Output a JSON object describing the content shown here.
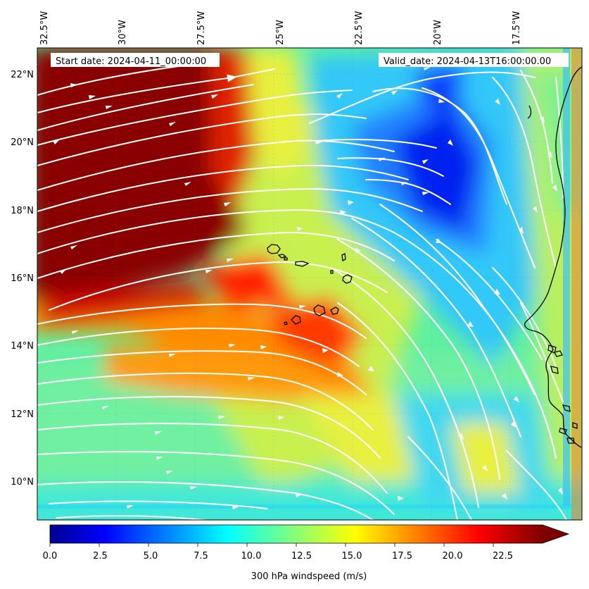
{
  "map": {
    "start_label": "Start date: 2024-04-11_00:00:00",
    "valid_label": "Valid_date: 2024-04-13T16:00:00.00",
    "lon_ticks": [
      "32.5°W",
      "30°W",
      "27.5°W",
      "25°W",
      "22.5°W",
      "20°W",
      "17.5°W"
    ],
    "lat_ticks": [
      "22°N",
      "20°N",
      "18°N",
      "16°N",
      "14°N",
      "12°N",
      "10°N"
    ],
    "lon_range": [
      -32.5,
      -15.0
    ],
    "lat_range": [
      8.9,
      22.8
    ]
  },
  "colorbar": {
    "label": "300 hPa windspeed (m/s)",
    "ticks": [
      "0.0",
      "2.5",
      "5.0",
      "7.5",
      "10.0",
      "12.5",
      "15.0",
      "17.5",
      "20.0",
      "22.5"
    ],
    "range": [
      0,
      25
    ],
    "extend": "max",
    "colormap": "jet"
  },
  "colors": {
    "streamline": "#ffffff",
    "coastline": "#000000",
    "high_wind": "#7f0000",
    "low_wind": "#0000d0"
  }
}
